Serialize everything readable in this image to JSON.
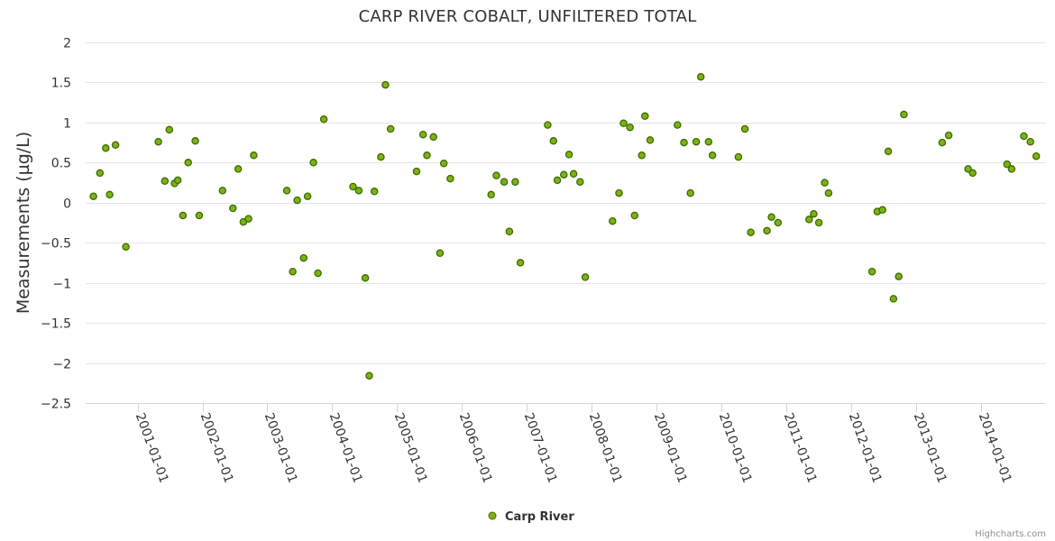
{
  "chart_data": {
    "type": "scatter",
    "title": "CARP RIVER COBALT, UNFILTERED TOTAL",
    "ylabel": "Measurements (µg/L)",
    "xlabel": "",
    "ylim": [
      -2.5,
      2
    ],
    "yticks": [
      -2.5,
      -2,
      -1.5,
      -1,
      -0.5,
      0,
      0.5,
      1,
      1.5,
      2
    ],
    "ytick_labels": [
      "−2.5",
      "−2",
      "−1.5",
      "−1",
      "−0.5",
      "0",
      "0.5",
      "1",
      "1.5",
      "2"
    ],
    "xlim": [
      2000.2,
      2015.0
    ],
    "xticks": [
      2001,
      2002,
      2003,
      2004,
      2005,
      2006,
      2007,
      2008,
      2009,
      2010,
      2011,
      2012,
      2013,
      2014
    ],
    "xtick_labels": [
      "2001-01-01",
      "2002-01-01",
      "2003-01-01",
      "2004-01-01",
      "2005-01-01",
      "2006-01-01",
      "2007-01-01",
      "2008-01-01",
      "2009-01-01",
      "2010-01-01",
      "2011-01-01",
      "2012-01-01",
      "2013-01-01",
      "2014-01-01"
    ],
    "grid": true,
    "legend_position": "bottom-center",
    "credit": "Highcharts.com",
    "marker_fill": "#7cb312",
    "marker_stroke": "#3e6b00",
    "series": [
      {
        "name": "Carp River",
        "points": [
          [
            2000.32,
            0.08
          ],
          [
            2000.42,
            0.37
          ],
          [
            2000.51,
            0.68
          ],
          [
            2000.57,
            0.1
          ],
          [
            2000.66,
            0.72
          ],
          [
            2000.82,
            -0.55
          ],
          [
            2001.32,
            0.76
          ],
          [
            2001.42,
            0.27
          ],
          [
            2001.49,
            0.91
          ],
          [
            2001.57,
            0.24
          ],
          [
            2001.62,
            0.28
          ],
          [
            2001.7,
            -0.16
          ],
          [
            2001.78,
            0.5
          ],
          [
            2001.89,
            0.77
          ],
          [
            2001.95,
            -0.16
          ],
          [
            2002.31,
            0.15
          ],
          [
            2002.47,
            -0.07
          ],
          [
            2002.55,
            0.42
          ],
          [
            2002.63,
            -0.24
          ],
          [
            2002.71,
            -0.2
          ],
          [
            2002.79,
            0.59
          ],
          [
            2003.3,
            0.15
          ],
          [
            2003.39,
            -0.86
          ],
          [
            2003.46,
            0.03
          ],
          [
            2003.56,
            -0.69
          ],
          [
            2003.62,
            0.08
          ],
          [
            2003.71,
            0.5
          ],
          [
            2003.78,
            -0.88
          ],
          [
            2003.87,
            1.04
          ],
          [
            2004.32,
            0.2
          ],
          [
            2004.41,
            0.15
          ],
          [
            2004.51,
            -0.94
          ],
          [
            2004.57,
            -2.16
          ],
          [
            2004.65,
            0.14
          ],
          [
            2004.75,
            0.57
          ],
          [
            2004.82,
            1.47
          ],
          [
            2004.9,
            0.92
          ],
          [
            2005.3,
            0.39
          ],
          [
            2005.4,
            0.85
          ],
          [
            2005.46,
            0.59
          ],
          [
            2005.56,
            0.82
          ],
          [
            2005.66,
            -0.63
          ],
          [
            2005.72,
            0.49
          ],
          [
            2005.82,
            0.3
          ],
          [
            2006.45,
            0.1
          ],
          [
            2006.53,
            0.34
          ],
          [
            2006.65,
            0.26
          ],
          [
            2006.73,
            -0.36
          ],
          [
            2006.82,
            0.26
          ],
          [
            2006.9,
            -0.75
          ],
          [
            2007.32,
            0.97
          ],
          [
            2007.41,
            0.77
          ],
          [
            2007.47,
            0.28
          ],
          [
            2007.57,
            0.35
          ],
          [
            2007.65,
            0.6
          ],
          [
            2007.72,
            0.36
          ],
          [
            2007.82,
            0.26
          ],
          [
            2007.9,
            -0.93
          ],
          [
            2008.32,
            -0.23
          ],
          [
            2008.42,
            0.12
          ],
          [
            2008.49,
            0.99
          ],
          [
            2008.59,
            0.94
          ],
          [
            2008.66,
            -0.16
          ],
          [
            2008.77,
            0.59
          ],
          [
            2008.82,
            1.08
          ],
          [
            2008.9,
            0.78
          ],
          [
            2009.32,
            0.97
          ],
          [
            2009.42,
            0.75
          ],
          [
            2009.52,
            0.12
          ],
          [
            2009.61,
            0.76
          ],
          [
            2009.68,
            1.57
          ],
          [
            2009.8,
            0.76
          ],
          [
            2009.86,
            0.59
          ],
          [
            2010.26,
            0.57
          ],
          [
            2010.36,
            0.92
          ],
          [
            2010.45,
            -0.37
          ],
          [
            2010.7,
            -0.35
          ],
          [
            2010.77,
            -0.18
          ],
          [
            2010.87,
            -0.25
          ],
          [
            2011.35,
            -0.21
          ],
          [
            2011.42,
            -0.14
          ],
          [
            2011.5,
            -0.25
          ],
          [
            2011.59,
            0.25
          ],
          [
            2011.65,
            0.12
          ],
          [
            2012.32,
            -0.86
          ],
          [
            2012.4,
            -0.11
          ],
          [
            2012.48,
            -0.09
          ],
          [
            2012.57,
            0.64
          ],
          [
            2012.65,
            -1.2
          ],
          [
            2012.73,
            -0.92
          ],
          [
            2012.81,
            1.1
          ],
          [
            2013.4,
            0.75
          ],
          [
            2013.5,
            0.84
          ],
          [
            2013.8,
            0.42
          ],
          [
            2013.87,
            0.37
          ],
          [
            2014.4,
            0.48
          ],
          [
            2014.47,
            0.42
          ],
          [
            2014.66,
            0.83
          ],
          [
            2014.76,
            0.76
          ],
          [
            2014.85,
            0.58
          ]
        ]
      }
    ]
  }
}
